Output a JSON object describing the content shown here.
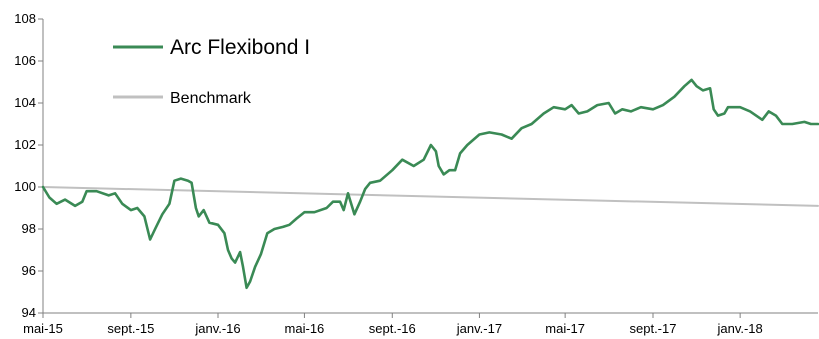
{
  "chart_data": {
    "type": "line",
    "ylim": [
      94,
      108
    ],
    "yticks": [
      94,
      96,
      98,
      100,
      102,
      104,
      106,
      108
    ],
    "xlim": [
      "2015-05-01",
      "2018-04-20"
    ],
    "xticks": [
      {
        "date": "2015-05-01",
        "label": "mai-15"
      },
      {
        "date": "2015-09-01",
        "label": "sept.-15"
      },
      {
        "date": "2016-01-01",
        "label": "janv.-16"
      },
      {
        "date": "2016-05-01",
        "label": "mai-16"
      },
      {
        "date": "2016-09-01",
        "label": "sept.-16"
      },
      {
        "date": "2017-01-01",
        "label": "janv.-17"
      },
      {
        "date": "2017-05-01",
        "label": "mai-17"
      },
      {
        "date": "2017-09-01",
        "label": "sept.-17"
      },
      {
        "date": "2018-01-01",
        "label": "janv.-18"
      }
    ],
    "grid": false,
    "legend": "top-left",
    "series": [
      {
        "name": "Arc Flexibond I",
        "color": "#3a8a55",
        "points": [
          [
            "2015-05-01",
            100.0
          ],
          [
            "2015-05-10",
            99.5
          ],
          [
            "2015-05-20",
            99.2
          ],
          [
            "2015-06-01",
            99.4
          ],
          [
            "2015-06-15",
            99.1
          ],
          [
            "2015-06-25",
            99.3
          ],
          [
            "2015-07-01",
            99.8
          ],
          [
            "2015-07-15",
            99.8
          ],
          [
            "2015-08-01",
            99.6
          ],
          [
            "2015-08-10",
            99.7
          ],
          [
            "2015-08-20",
            99.2
          ],
          [
            "2015-09-01",
            98.9
          ],
          [
            "2015-09-10",
            99.0
          ],
          [
            "2015-09-20",
            98.6
          ],
          [
            "2015-09-28",
            97.5
          ],
          [
            "2015-10-05",
            98.0
          ],
          [
            "2015-10-15",
            98.7
          ],
          [
            "2015-10-25",
            99.2
          ],
          [
            "2015-11-01",
            100.3
          ],
          [
            "2015-11-10",
            100.4
          ],
          [
            "2015-11-20",
            100.3
          ],
          [
            "2015-11-25",
            100.2
          ],
          [
            "2015-12-01",
            99.0
          ],
          [
            "2015-12-05",
            98.6
          ],
          [
            "2015-12-12",
            98.9
          ],
          [
            "2015-12-20",
            98.3
          ],
          [
            "2016-01-01",
            98.2
          ],
          [
            "2016-01-10",
            97.8
          ],
          [
            "2016-01-15",
            97.0
          ],
          [
            "2016-01-20",
            96.6
          ],
          [
            "2016-01-25",
            96.4
          ],
          [
            "2016-02-01",
            96.9
          ],
          [
            "2016-02-05",
            96.2
          ],
          [
            "2016-02-10",
            95.2
          ],
          [
            "2016-02-15",
            95.5
          ],
          [
            "2016-02-22",
            96.2
          ],
          [
            "2016-03-01",
            96.8
          ],
          [
            "2016-03-10",
            97.8
          ],
          [
            "2016-03-20",
            98.0
          ],
          [
            "2016-04-01",
            98.1
          ],
          [
            "2016-04-10",
            98.2
          ],
          [
            "2016-04-20",
            98.5
          ],
          [
            "2016-05-01",
            98.8
          ],
          [
            "2016-05-15",
            98.8
          ],
          [
            "2016-06-01",
            99.0
          ],
          [
            "2016-06-10",
            99.3
          ],
          [
            "2016-06-20",
            99.3
          ],
          [
            "2016-06-25",
            98.9
          ],
          [
            "2016-07-01",
            99.7
          ],
          [
            "2016-07-10",
            98.7
          ],
          [
            "2016-07-18",
            99.3
          ],
          [
            "2016-07-25",
            99.9
          ],
          [
            "2016-08-01",
            100.2
          ],
          [
            "2016-08-15",
            100.3
          ],
          [
            "2016-09-01",
            100.8
          ],
          [
            "2016-09-15",
            101.3
          ],
          [
            "2016-10-01",
            101.0
          ],
          [
            "2016-10-15",
            101.3
          ],
          [
            "2016-10-25",
            102.0
          ],
          [
            "2016-11-01",
            101.7
          ],
          [
            "2016-11-05",
            101.0
          ],
          [
            "2016-11-12",
            100.6
          ],
          [
            "2016-11-20",
            100.8
          ],
          [
            "2016-11-28",
            100.8
          ],
          [
            "2016-12-05",
            101.6
          ],
          [
            "2016-12-15",
            102.0
          ],
          [
            "2017-01-01",
            102.5
          ],
          [
            "2017-01-15",
            102.6
          ],
          [
            "2017-02-01",
            102.5
          ],
          [
            "2017-02-15",
            102.3
          ],
          [
            "2017-03-01",
            102.8
          ],
          [
            "2017-03-15",
            103.0
          ],
          [
            "2017-04-01",
            103.5
          ],
          [
            "2017-04-15",
            103.8
          ],
          [
            "2017-05-01",
            103.7
          ],
          [
            "2017-05-10",
            103.9
          ],
          [
            "2017-05-20",
            103.5
          ],
          [
            "2017-06-01",
            103.6
          ],
          [
            "2017-06-15",
            103.9
          ],
          [
            "2017-07-01",
            104.0
          ],
          [
            "2017-07-10",
            103.5
          ],
          [
            "2017-07-20",
            103.7
          ],
          [
            "2017-08-01",
            103.6
          ],
          [
            "2017-08-15",
            103.8
          ],
          [
            "2017-09-01",
            103.7
          ],
          [
            "2017-09-15",
            103.9
          ],
          [
            "2017-10-01",
            104.3
          ],
          [
            "2017-10-15",
            104.8
          ],
          [
            "2017-10-25",
            105.1
          ],
          [
            "2017-11-01",
            104.8
          ],
          [
            "2017-11-10",
            104.6
          ],
          [
            "2017-11-20",
            104.7
          ],
          [
            "2017-11-25",
            103.7
          ],
          [
            "2017-12-01",
            103.4
          ],
          [
            "2017-12-10",
            103.5
          ],
          [
            "2017-12-15",
            103.8
          ],
          [
            "2018-01-01",
            103.8
          ],
          [
            "2018-01-15",
            103.6
          ],
          [
            "2018-02-01",
            103.2
          ],
          [
            "2018-02-10",
            103.6
          ],
          [
            "2018-02-20",
            103.4
          ],
          [
            "2018-03-01",
            103.0
          ],
          [
            "2018-03-15",
            103.0
          ],
          [
            "2018-04-01",
            103.1
          ],
          [
            "2018-04-10",
            103.0
          ],
          [
            "2018-04-20",
            103.0
          ]
        ]
      },
      {
        "name": "Benchmark",
        "color": "#c0c0c0",
        "points": [
          [
            "2015-05-01",
            100.0
          ],
          [
            "2018-04-20",
            99.1
          ]
        ]
      }
    ]
  }
}
